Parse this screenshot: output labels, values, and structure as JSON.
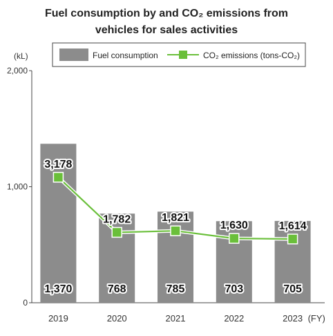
{
  "chart_data": {
    "type": "bar",
    "title": "Fuel consumption by and CO₂ emissions from vehicles for sales activities",
    "title_lines": [
      "Fuel consumption by and CO₂ emissions from",
      "vehicles for sales activities"
    ],
    "ylabel": "(kL)",
    "x_unit": "(FY)",
    "categories": [
      "2019",
      "2020",
      "2021",
      "2022",
      "2023"
    ],
    "ylim": [
      0,
      2000
    ],
    "yticks": [
      0,
      1000,
      2000
    ],
    "ytick_labels": [
      "0",
      "1,000",
      "2,000"
    ],
    "legend_position": "top",
    "series": [
      {
        "name": "Fuel consumption",
        "type": "bar",
        "values": [
          1370,
          768,
          785,
          703,
          705
        ],
        "labels": [
          "1,370",
          "768",
          "785",
          "703",
          "705"
        ],
        "color": "#8c8c8c"
      },
      {
        "name": "CO₂ emissions (tons-CO₂)",
        "type": "line",
        "values": [
          3178,
          1782,
          1821,
          1630,
          1614
        ],
        "labels": [
          "3,178",
          "1,782",
          "1,821",
          "1,630",
          "1,614"
        ],
        "color": "#6abf3a",
        "axis_note": "plotted on an unlabeled secondary scale"
      }
    ]
  }
}
